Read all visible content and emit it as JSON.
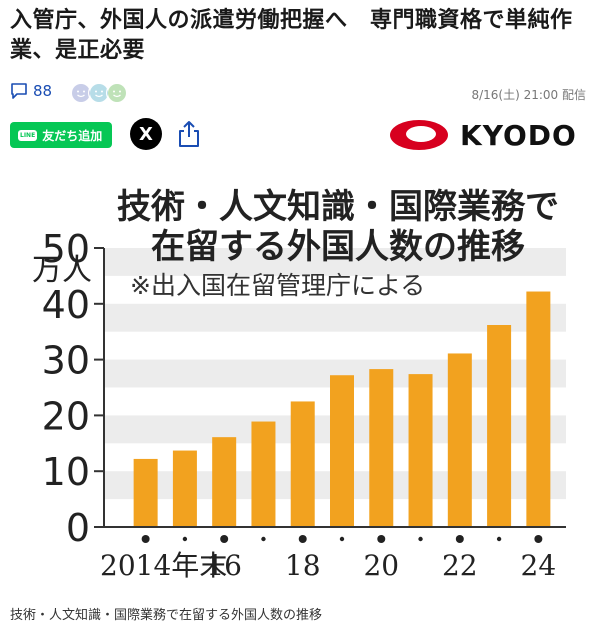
{
  "article": {
    "headline": "入管庁、外国人の派遣労働把握へ　専門職資格で単純作業、是正必要",
    "comment_count": "88",
    "date": "8/16(土) 21:00 配信",
    "line_button": "友だち追加",
    "line_badge": "LINE",
    "x_label": "X",
    "publisher": "KYODO",
    "caption": "技術・人文知識・国際業務で在留する外国人数の推移"
  },
  "colors": {
    "bar": "#f2a21f",
    "stripe": "#ececec",
    "line_green": "#06c755",
    "kyodo_red": "#d7001f",
    "link_blue": "#1a4db3"
  },
  "icons": [
    "comment-icon",
    "reaction-face-icon",
    "x-icon",
    "share-icon",
    "kyodo-logo-icon"
  ],
  "chart_data": {
    "type": "bar",
    "title_line1": "技術・人文知識・国際業務で",
    "title_line2": "在留する外国人数の推移",
    "source_note": "※出入国在留管理庁による",
    "ylabel": "万人",
    "ylim": [
      0,
      50
    ],
    "yticks": [
      "0",
      "10",
      "20",
      "30",
      "40",
      "50"
    ],
    "categories": [
      "2014",
      "2015",
      "2016",
      "2017",
      "2018",
      "2019",
      "2020",
      "2021",
      "2022",
      "2023",
      "2024"
    ],
    "values": [
      12.2,
      13.7,
      16.1,
      18.9,
      22.5,
      27.2,
      28.3,
      27.4,
      31.1,
      36.2,
      42.2
    ],
    "xtick_labels": [
      "2014年末",
      "16",
      "18",
      "20",
      "22",
      "24"
    ],
    "grid": "horizontal stripes"
  }
}
